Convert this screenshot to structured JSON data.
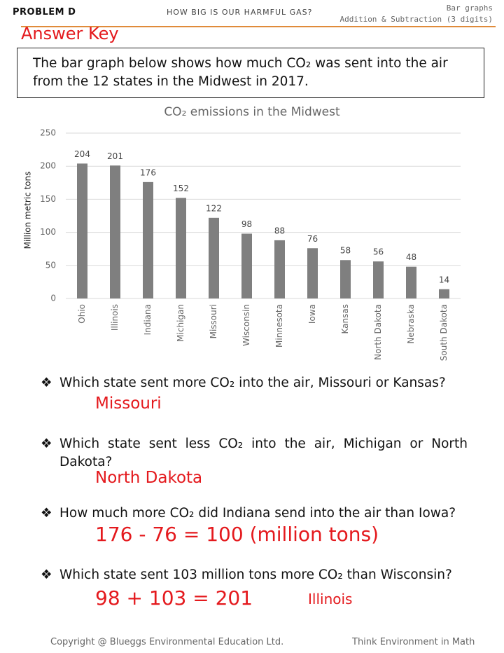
{
  "header": {
    "problem": "PROBLEM D",
    "topic": "HOW BIG IS OUR HARMFUL GAS?",
    "category": "Bar graphs",
    "skill": "Addition & Subtraction (3 digits)"
  },
  "answer_key": "Answer Key",
  "intro": "The bar graph below shows how much CO₂ was sent into the air from the 12 states in the Midwest in 2017.",
  "chart_data": {
    "type": "bar",
    "title": "CO₂ emissions in the Midwest",
    "y_label": "Million metric tons",
    "categories": [
      "Ohio",
      "Illinois",
      "Indiana",
      "Michigan",
      "Missouri",
      "Wisconsin",
      "Minnesota",
      "Iowa",
      "Kansas",
      "North Dakota",
      "Nebraska",
      "South Dakota"
    ],
    "values": [
      204,
      201,
      176,
      152,
      122,
      98,
      88,
      76,
      58,
      56,
      48,
      14
    ],
    "color": "#7f7f7f",
    "ylim": [
      0,
      250
    ],
    "yticks": [
      0,
      50,
      100,
      150,
      200,
      250
    ],
    "grid": true
  },
  "questions": [
    {
      "question": "Which state sent more CO₂ into the air, Missouri or Kansas?",
      "answers": [
        "Missouri"
      ]
    },
    {
      "question": "Which state sent less CO₂ into the air, Michigan or North Dakota?",
      "answers": [
        "North Dakota"
      ]
    },
    {
      "question": "How much more CO₂ did Indiana send into the air than Iowa?",
      "answers": [
        "176 - 76 = 100 (million tons)"
      ]
    },
    {
      "question": "Which state sent 103 million tons more CO₂ than Wisconsin?",
      "answers": [
        "98 + 103 = 201",
        "Illinois"
      ]
    }
  ],
  "footer": {
    "left": "Copyright @ Blueggs Environmental Education Ltd.",
    "right": "Think Environment in Math"
  }
}
